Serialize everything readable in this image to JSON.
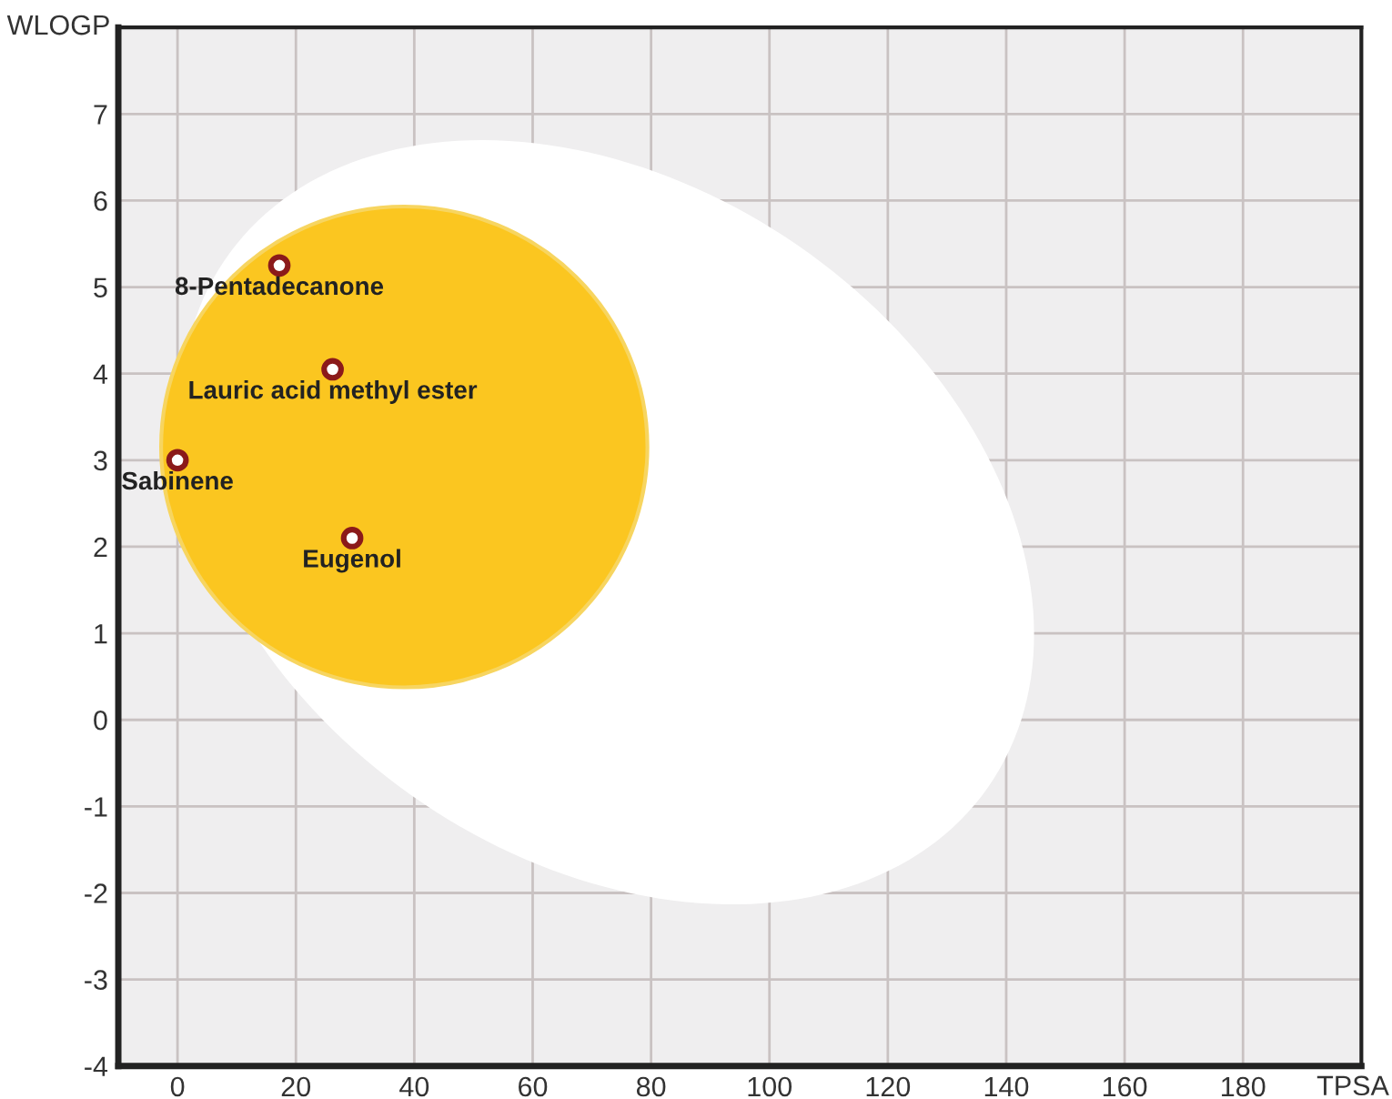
{
  "chart_data": {
    "type": "scatter",
    "xlabel": "TPSA",
    "ylabel": "WLOGP",
    "xlim": [
      -10,
      200
    ],
    "ylim": [
      -4,
      8
    ],
    "xticks": [
      0,
      20,
      40,
      60,
      80,
      100,
      120,
      140,
      160,
      180
    ],
    "yticks": [
      -4,
      -3,
      -2,
      -1,
      0,
      1,
      2,
      3,
      4,
      5,
      6,
      7
    ],
    "grid": true,
    "marker": "circle",
    "series": [
      {
        "color": "#8b1a1a",
        "x": [
          0,
          17.2,
          26.2,
          29.5
        ],
        "values": [
          3.0,
          5.25,
          4.05,
          2.1
        ]
      }
    ],
    "annotations": [
      {
        "text": "Sabinene",
        "x": 0,
        "y": 3.0
      },
      {
        "text": "8-Pentadecanone",
        "x": 17.2,
        "y": 5.25
      },
      {
        "text": "Lauric acid methyl ester",
        "x": 26.2,
        "y": 4.05
      },
      {
        "text": "Eugenol",
        "x": 29.5,
        "y": 2.1
      }
    ]
  }
}
